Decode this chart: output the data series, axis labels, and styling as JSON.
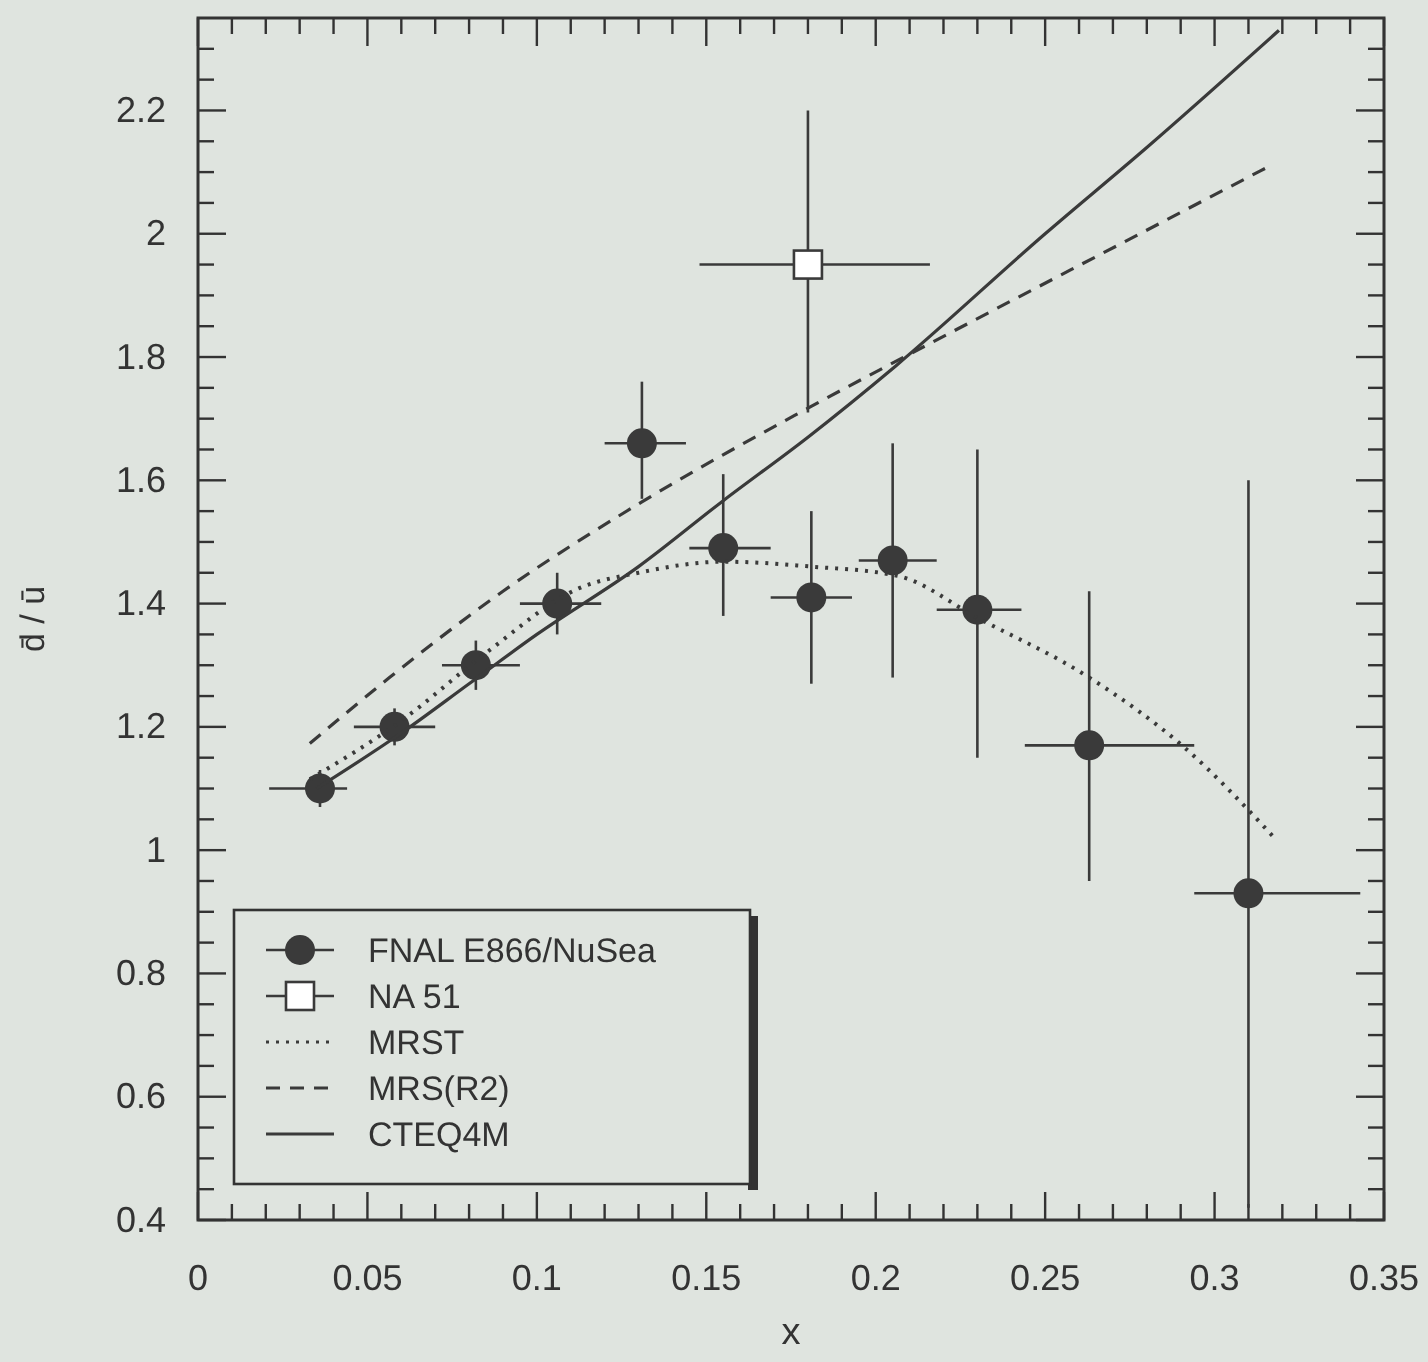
{
  "chart_data": {
    "type": "scatter",
    "xlabel": "x",
    "ylabel": "d̄ / ū",
    "xlim": [
      0,
      0.35
    ],
    "ylim": [
      0.4,
      2.35
    ],
    "xticks": [
      0,
      0.05,
      0.1,
      0.15,
      0.2,
      0.25,
      0.3,
      0.35,
      {
        "value": 0.01,
        "label": null
      },
      {
        "value": 0.02,
        "label": null
      },
      {
        "value": 0.03,
        "label": null
      },
      {
        "value": 0.04,
        "label": null
      },
      {
        "value": 0.06,
        "label": null
      },
      {
        "value": 0.07,
        "label": null
      },
      {
        "value": 0.08,
        "label": null
      },
      {
        "value": 0.09,
        "label": null
      },
      {
        "value": 0.11,
        "label": null
      },
      {
        "value": 0.12,
        "label": null
      },
      {
        "value": 0.13,
        "label": null
      },
      {
        "value": 0.14,
        "label": null
      },
      {
        "value": 0.16,
        "label": null
      },
      {
        "value": 0.17,
        "label": null
      },
      {
        "value": 0.18,
        "label": null
      },
      {
        "value": 0.19,
        "label": null
      },
      {
        "value": 0.21,
        "label": null
      },
      {
        "value": 0.22,
        "label": null
      },
      {
        "value": 0.23,
        "label": null
      },
      {
        "value": 0.24,
        "label": null
      },
      {
        "value": 0.26,
        "label": null
      },
      {
        "value": 0.27,
        "label": null
      },
      {
        "value": 0.28,
        "label": null
      },
      {
        "value": 0.29,
        "label": null
      },
      {
        "value": 0.31,
        "label": null
      },
      {
        "value": 0.32,
        "label": null
      },
      {
        "value": 0.33,
        "label": null
      },
      {
        "value": 0.34,
        "label": null
      }
    ],
    "yticks": [
      0.4,
      0.6,
      0.8,
      1,
      1.2,
      1.4,
      1.6,
      1.8,
      2,
      2.2,
      {
        "value": 0.45,
        "label": null
      },
      {
        "value": 0.5,
        "label": null
      },
      {
        "value": 0.55,
        "label": null
      },
      {
        "value": 0.65,
        "label": null
      },
      {
        "value": 0.7,
        "label": null
      },
      {
        "value": 0.75,
        "label": null
      },
      {
        "value": 0.85,
        "label": null
      },
      {
        "value": 0.9,
        "label": null
      },
      {
        "value": 0.95,
        "label": null
      },
      {
        "value": 1.05,
        "label": null
      },
      {
        "value": 1.1,
        "label": null
      },
      {
        "value": 1.15,
        "label": null
      },
      {
        "value": 1.25,
        "label": null
      },
      {
        "value": 1.3,
        "label": null
      },
      {
        "value": 1.35,
        "label": null
      },
      {
        "value": 1.45,
        "label": null
      },
      {
        "value": 1.5,
        "label": null
      },
      {
        "value": 1.55,
        "label": null
      },
      {
        "value": 1.65,
        "label": null
      },
      {
        "value": 1.7,
        "label": null
      },
      {
        "value": 1.75,
        "label": null
      },
      {
        "value": 1.85,
        "label": null
      },
      {
        "value": 1.9,
        "label": null
      },
      {
        "value": 1.95,
        "label": null
      },
      {
        "value": 2.05,
        "label": null
      },
      {
        "value": 2.1,
        "label": null
      },
      {
        "value": 2.15,
        "label": null
      },
      {
        "value": 2.25,
        "label": null
      },
      {
        "value": 2.3,
        "label": null
      }
    ],
    "legend": "bottom left",
    "series": [
      {
        "name": "FNAL E866/NuSea",
        "type": "scatter",
        "marker": "circle",
        "color": "#3a3a3a",
        "x": [
          0.036,
          0.058,
          0.082,
          0.106,
          0.131,
          0.155,
          0.181,
          0.205,
          0.23,
          0.263,
          0.31
        ],
        "values": [
          1.1,
          1.2,
          1.3,
          1.4,
          1.66,
          1.49,
          1.41,
          1.47,
          1.39,
          1.17,
          0.93
        ],
        "errors": [
          [
            1.07,
            1.13
          ],
          [
            1.17,
            1.23
          ],
          [
            1.26,
            1.34
          ],
          [
            1.35,
            1.45
          ],
          [
            1.57,
            1.76
          ],
          [
            1.38,
            1.61
          ],
          [
            1.27,
            1.55
          ],
          [
            1.28,
            1.66
          ],
          [
            1.15,
            1.65
          ],
          [
            0.95,
            1.42
          ],
          [
            0.42,
            1.6
          ]
        ],
        "xerrors": [
          [
            0.021,
            0.044
          ],
          [
            0.046,
            0.07
          ],
          [
            0.072,
            0.095
          ],
          [
            0.095,
            0.119
          ],
          [
            0.12,
            0.144
          ],
          [
            0.145,
            0.169
          ],
          [
            0.169,
            0.193
          ],
          [
            0.195,
            0.218
          ],
          [
            0.218,
            0.243
          ],
          [
            0.244,
            0.294
          ],
          [
            0.294,
            0.343
          ]
        ]
      },
      {
        "name": "NA 51",
        "type": "scatter",
        "marker": "square",
        "color": "#3a3a3a",
        "x": [
          0.18
        ],
        "values": [
          1.95
        ],
        "errors": [
          [
            1.71,
            2.2
          ]
        ],
        "xerrors": [
          [
            0.148,
            0.216
          ]
        ]
      },
      {
        "name": "MRST",
        "type": "line",
        "line_style": "dotted",
        "color": "#3a3a3a",
        "x": [
          0.033,
          0.06,
          0.085,
          0.1125,
          0.13,
          0.155,
          0.181,
          0.2065,
          0.23,
          0.263,
          0.291,
          0.318
        ],
        "values": [
          1.115,
          1.21,
          1.32,
          1.425,
          1.45,
          1.468,
          1.46,
          1.445,
          1.377,
          1.28,
          1.167,
          1.018
        ]
      },
      {
        "name": "MRS(R2)",
        "type": "line",
        "line_style": "dashed",
        "color": "#3a3a3a",
        "x": [
          0.033,
          0.0565,
          0.09,
          0.131,
          0.18,
          0.224,
          0.271,
          0.317
        ],
        "values": [
          1.173,
          1.28,
          1.42,
          1.565,
          1.717,
          1.845,
          1.98,
          2.112
        ]
      },
      {
        "name": "CTEQ4M",
        "type": "line",
        "line_style": "solid",
        "color": "#3a3a3a",
        "x": [
          0.035,
          0.06,
          0.08,
          0.1,
          0.13,
          0.155,
          0.18,
          0.206,
          0.25,
          0.28,
          0.319
        ],
        "values": [
          1.1,
          1.19,
          1.27,
          1.35,
          1.46,
          1.567,
          1.67,
          1.786,
          2.0,
          2.14,
          2.33
        ]
      }
    ]
  }
}
